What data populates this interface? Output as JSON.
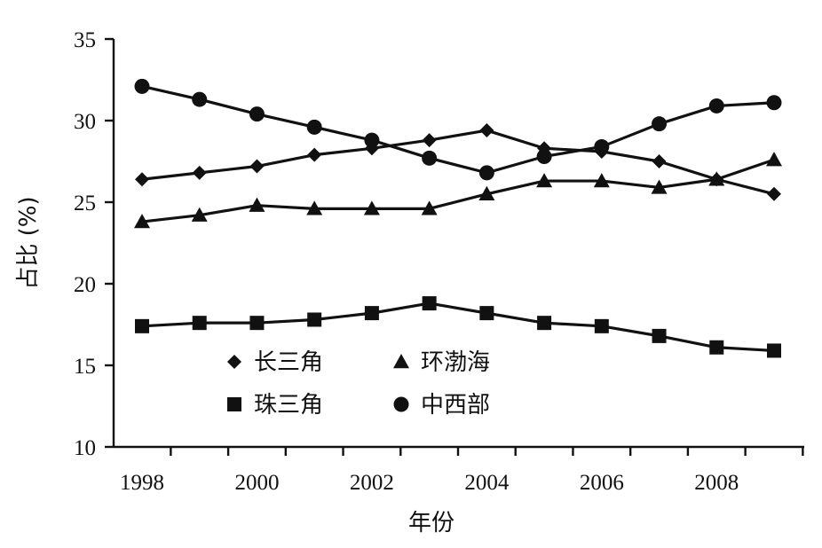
{
  "chart_data": {
    "type": "line",
    "title": "",
    "xlabel": "年份",
    "ylabel": "占比 (%)",
    "x": [
      1998,
      1999,
      2000,
      2001,
      2002,
      2003,
      2004,
      2005,
      2006,
      2007,
      2008,
      2009
    ],
    "xlim": [
      1998,
      2009
    ],
    "xtick_labels": [
      "1998",
      "2000",
      "2002",
      "2004",
      "2006",
      "2008"
    ],
    "ylim": [
      10,
      35
    ],
    "ytick_labels": [
      "10",
      "15",
      "20",
      "25",
      "30",
      "35"
    ],
    "grid": false,
    "legend_position": "bottom-left, inside plot",
    "series": [
      {
        "name": "长三角",
        "marker": "diamond",
        "values": [
          26.4,
          26.8,
          27.2,
          27.9,
          28.3,
          28.8,
          29.4,
          28.3,
          28.1,
          27.5,
          26.4,
          25.5
        ]
      },
      {
        "name": "环渤海",
        "marker": "triangle",
        "values": [
          23.8,
          24.2,
          24.8,
          24.6,
          24.6,
          24.6,
          25.5,
          26.3,
          26.3,
          25.9,
          26.4,
          27.6
        ]
      },
      {
        "name": "珠三角",
        "marker": "square",
        "values": [
          17.4,
          17.6,
          17.6,
          17.8,
          18.2,
          18.8,
          18.2,
          17.6,
          17.4,
          16.8,
          16.1,
          15.9
        ]
      },
      {
        "name": "中西部",
        "marker": "circle",
        "values": [
          32.1,
          31.3,
          30.4,
          29.6,
          28.8,
          27.7,
          26.8,
          27.8,
          28.4,
          29.8,
          30.9,
          31.1
        ]
      }
    ]
  }
}
